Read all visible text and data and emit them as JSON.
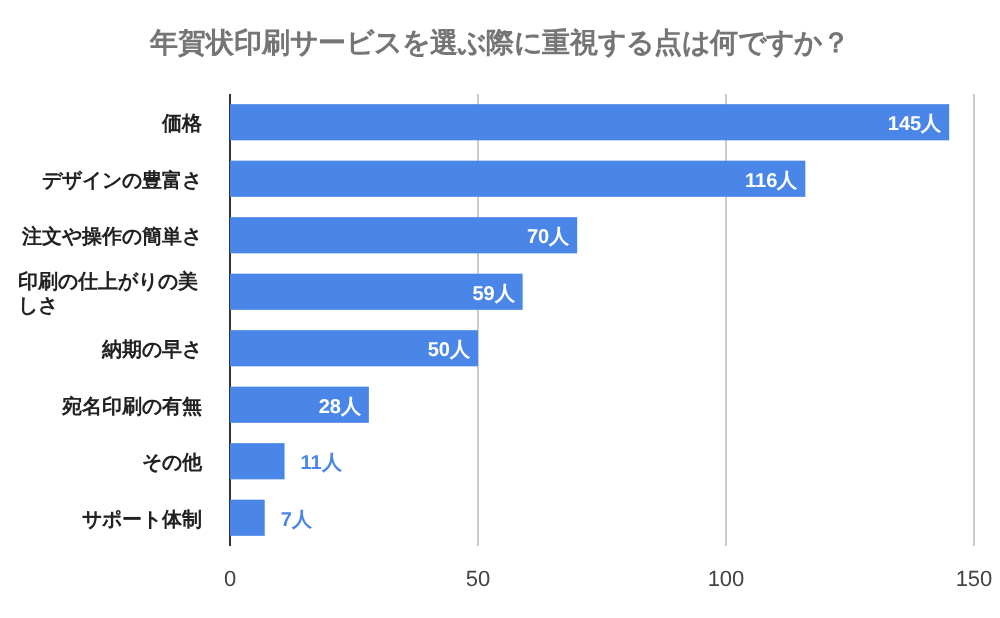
{
  "chart_data": {
    "type": "bar",
    "orientation": "horizontal",
    "title": "年賀状印刷サービスを選ぶ際に重視する点は何ですか？",
    "categories": [
      "価格",
      "デザインの豊富さ",
      "注文や操作の簡単さ",
      "印刷の仕上がりの美しさ",
      "納期の早さ",
      "宛名印刷の有無",
      "その他",
      "サポート体制"
    ],
    "values": [
      145,
      116,
      70,
      59,
      50,
      28,
      11,
      7
    ],
    "value_labels": [
      "145人",
      "116人",
      "70人",
      "59人",
      "50人",
      "28人",
      "11人",
      "7人"
    ],
    "color": "#4a86e8",
    "xlim": [
      0,
      150
    ],
    "xticks": [
      0,
      50,
      100,
      150
    ],
    "grid": "x"
  }
}
